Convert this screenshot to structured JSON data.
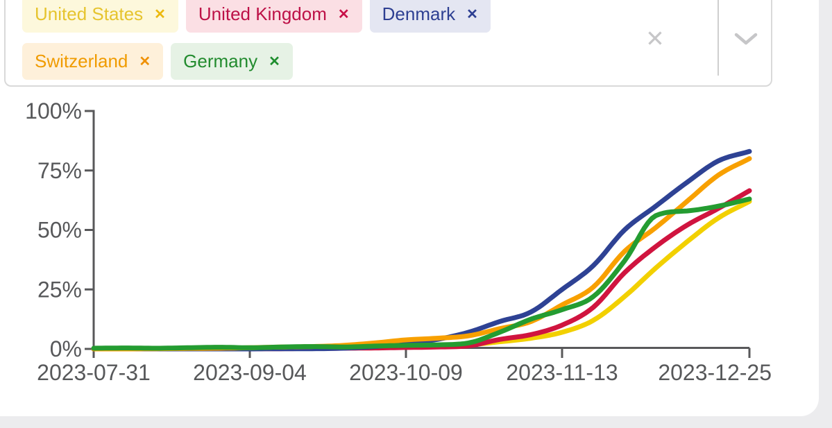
{
  "select": {
    "remove_glyph": "✕",
    "clear_glyph": "✕",
    "chips": [
      {
        "label": "United States",
        "text_color": "#e6c42e",
        "bg_color": "#fdf8dc",
        "x_color": "#ecb90f"
      },
      {
        "label": "United Kingdom",
        "text_color": "#bd1147",
        "bg_color": "#fbdfe4",
        "x_color": "#c81048"
      },
      {
        "label": "Denmark",
        "text_color": "#2d3f92",
        "bg_color": "#e4e6f2",
        "x_color": "#2d3f92"
      },
      {
        "label": "Switzerland",
        "text_color": "#f09b00",
        "bg_color": "#fef0da",
        "x_color": "#ef9000"
      },
      {
        "label": "Germany",
        "text_color": "#228b2e",
        "bg_color": "#e6f2e5",
        "x_color": "#1e8e2e"
      }
    ],
    "icons": {
      "clear": "clear-x-icon",
      "dropdown": "chevron-down-icon",
      "remove": "remove-icon"
    },
    "icon_color": "#c6c6c8"
  },
  "chart_data": {
    "type": "line",
    "xlabel": "",
    "ylabel": "",
    "ylim": [
      0,
      100
    ],
    "grid": false,
    "legend": "none (colors match country chips above)",
    "axis_color": "#58585a",
    "label_color": "#57585a",
    "x_dates": [
      "2023-07-31",
      "2023-08-07",
      "2023-08-14",
      "2023-08-21",
      "2023-08-28",
      "2023-09-04",
      "2023-09-11",
      "2023-09-18",
      "2023-09-25",
      "2023-10-02",
      "2023-10-09",
      "2023-10-16",
      "2023-10-23",
      "2023-10-30",
      "2023-11-06",
      "2023-11-13",
      "2023-11-20",
      "2023-11-27",
      "2023-12-04",
      "2023-12-11",
      "2023-12-18",
      "2023-12-25"
    ],
    "yticks": [
      {
        "label": "100%",
        "value": 100
      },
      {
        "label": "75%",
        "value": 75
      },
      {
        "label": "50%",
        "value": 50
      },
      {
        "label": "25%",
        "value": 25
      },
      {
        "label": "0%",
        "value": 0
      }
    ],
    "xticks": [
      {
        "label": "2023-07-31",
        "week_index": 0
      },
      {
        "label": "2023-09-04",
        "week_index": 5
      },
      {
        "label": "2023-10-09",
        "week_index": 10
      },
      {
        "label": "2023-11-13",
        "week_index": 15
      },
      {
        "label": "2023-12-25",
        "week_index": 21
      }
    ],
    "series": [
      {
        "name": "United States",
        "color": "#f2d000",
        "values": [
          0,
          0,
          0.1,
          0.2,
          0.3,
          0.4,
          0.5,
          0.5,
          0.6,
          0.8,
          1,
          1.3,
          1.7,
          3,
          4.5,
          7,
          12,
          22,
          34,
          45,
          55,
          62
        ]
      },
      {
        "name": "United Kingdom",
        "color": "#d0143f",
        "values": [
          0,
          0,
          0,
          0,
          0.1,
          0.1,
          0.1,
          0.2,
          0.3,
          0.4,
          0.6,
          0.8,
          1.3,
          4,
          6,
          10,
          17.5,
          32,
          43,
          52,
          59,
          66.5
        ]
      },
      {
        "name": "Denmark",
        "color": "#2e4294",
        "values": [
          0,
          0,
          0,
          0,
          0,
          0,
          0.1,
          0.1,
          0.3,
          1,
          2.3,
          4,
          7,
          11.5,
          15.5,
          25,
          35,
          50,
          60,
          70,
          79,
          83
        ]
      },
      {
        "name": "Switzerland",
        "color": "#f8a000",
        "values": [
          0,
          0,
          0.1,
          0.2,
          0.3,
          0.5,
          0.8,
          1,
          1.5,
          2.5,
          3.8,
          4.5,
          5.5,
          8.5,
          11.5,
          18.5,
          26,
          41,
          51,
          62,
          73,
          80
        ]
      },
      {
        "name": "Germany",
        "color": "#249c31",
        "values": [
          0.3,
          0.4,
          0.3,
          0.5,
          0.7,
          0.5,
          0.8,
          1,
          0.8,
          1.2,
          1.5,
          1.7,
          2.5,
          7,
          12.5,
          16.5,
          22,
          37,
          56,
          58,
          60,
          63
        ]
      }
    ]
  }
}
